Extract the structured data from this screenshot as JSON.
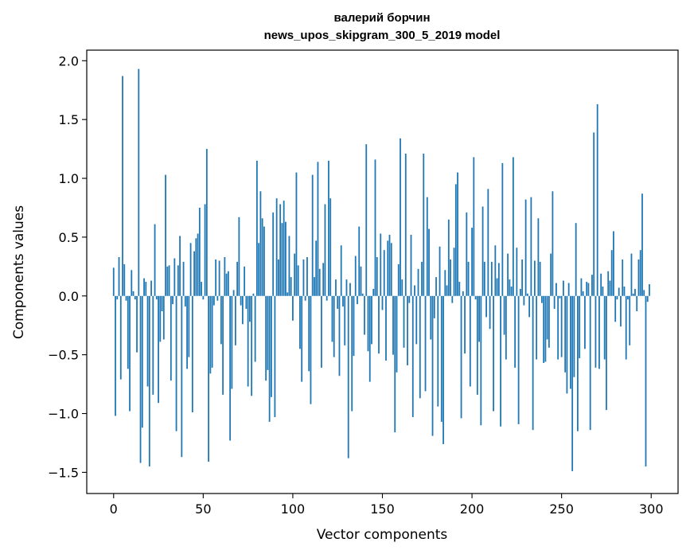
{
  "chart_data": {
    "type": "bar",
    "title": "валерий борчин",
    "subtitle": "news_upos_skipgram_300_5_2019 model",
    "xlabel": "Vector components",
    "ylabel": "Components values",
    "xlim": [
      -15,
      315
    ],
    "ylim": [
      -1.68,
      2.09
    ],
    "xticks": [
      0,
      50,
      100,
      150,
      200,
      250,
      300
    ],
    "yticks": [
      -1.5,
      -1.0,
      -0.5,
      0.0,
      0.5,
      1.0,
      1.5,
      2.0
    ],
    "ytick_labels": [
      "−1.5",
      "−1.0",
      "−0.5",
      "0.0",
      "0.5",
      "1.0",
      "1.5",
      "2.0"
    ],
    "bar_color": "#1f77b4",
    "grid": false,
    "values": [
      0.24,
      -1.02,
      -0.03,
      0.33,
      -0.71,
      1.87,
      0.27,
      -0.04,
      -0.62,
      -0.98,
      0.22,
      0.04,
      -0.03,
      -0.48,
      1.93,
      -1.42,
      -1.12,
      0.15,
      0.12,
      -0.77,
      -1.45,
      0.13,
      -0.84,
      0.61,
      -0.03,
      -0.91,
      -0.39,
      -0.13,
      -0.37,
      1.03,
      0.25,
      0.26,
      -0.72,
      -0.07,
      0.32,
      -1.15,
      0.26,
      0.51,
      -1.37,
      0.29,
      -0.09,
      -0.62,
      -0.52,
      0.45,
      -0.99,
      0.38,
      0.49,
      0.53,
      0.75,
      0.12,
      -0.03,
      0.78,
      1.25,
      -1.41,
      -0.66,
      -0.61,
      -0.08,
      0.31,
      -0.04,
      0.3,
      -0.41,
      -0.84,
      0.33,
      0.19,
      0.21,
      -1.23,
      -0.79,
      0.05,
      -0.42,
      0.29,
      0.67,
      -0.08,
      -0.24,
      0.25,
      -0.11,
      -0.77,
      -0.22,
      -0.85,
      0.02,
      -0.56,
      1.15,
      0.45,
      0.89,
      0.66,
      0.59,
      -0.72,
      -0.63,
      -1.07,
      -0.86,
      0.71,
      -1.03,
      0.83,
      0.31,
      0.78,
      0.62,
      0.81,
      0.63,
      0.03,
      0.51,
      0.16,
      -0.21,
      0.36,
      1.05,
      0.26,
      -0.45,
      -0.73,
      0.31,
      -0.04,
      0.33,
      -0.64,
      -0.92,
      1.03,
      0.16,
      0.47,
      1.14,
      0.23,
      -0.61,
      0.28,
      0.78,
      -0.04,
      1.15,
      0.83,
      -0.39,
      -0.52,
      0.14,
      -0.11,
      -0.68,
      0.43,
      -0.09,
      -0.42,
      0.14,
      -1.38,
      0.11,
      -0.98,
      -0.51,
      0.34,
      -0.07,
      0.59,
      0.25,
      0.02,
      -0.33,
      1.29,
      -0.47,
      -0.73,
      -0.41,
      0.06,
      1.16,
      0.33,
      -0.49,
      0.53,
      -0.12,
      0.39,
      -0.55,
      0.47,
      0.52,
      0.45,
      -0.5,
      -1.16,
      -0.65,
      0.27,
      1.34,
      0.14,
      -0.44,
      1.21,
      -0.59,
      -0.06,
      0.52,
      -1.03,
      0.09,
      -0.41,
      0.23,
      -0.87,
      0.29,
      1.21,
      -0.81,
      0.84,
      0.57,
      -0.37,
      -1.19,
      -0.19,
      0.16,
      -0.94,
      0.42,
      -1.07,
      -1.26,
      0.22,
      0.09,
      0.65,
      0.31,
      -0.06,
      0.41,
      0.95,
      1.05,
      0.12,
      -1.04,
      0.04,
      -0.49,
      0.71,
      0.29,
      -0.77,
      0.58,
      1.18,
      -0.03,
      -0.84,
      -0.39,
      -1.1,
      0.76,
      0.29,
      -0.18,
      0.91,
      -0.28,
      0.29,
      -0.98,
      0.43,
      0.15,
      0.28,
      -1.11,
      1.13,
      -0.33,
      -0.54,
      0.36,
      0.14,
      0.08,
      1.18,
      -0.61,
      0.41,
      -1.09,
      0.06,
      0.31,
      -0.08,
      0.82,
      0.02,
      -0.18,
      0.84,
      -1.14,
      0.3,
      -0.54,
      0.66,
      0.29,
      -0.06,
      -0.57,
      -0.56,
      -0.37,
      -0.44,
      0.36,
      0.89,
      -0.11,
      0.11,
      -0.54,
      -0.02,
      -0.52,
      0.13,
      -0.65,
      -0.83,
      0.11,
      -0.79,
      -1.49,
      -0.69,
      0.62,
      -1.15,
      -0.53,
      0.15,
      0.04,
      -0.45,
      0.12,
      0.11,
      -1.14,
      0.18,
      1.39,
      -0.61,
      1.63,
      -0.62,
      0.19,
      0.08,
      -0.54,
      -0.97,
      0.21,
      0.13,
      0.39,
      0.55,
      -0.22,
      -0.03,
      0.07,
      -0.26,
      0.31,
      0.08,
      -0.54,
      -0.03,
      -0.42,
      0.36,
      0.02,
      0.06,
      -0.13,
      0.31,
      0.39,
      0.87,
      0.05,
      -1.45,
      -0.05,
      0.1
    ]
  }
}
